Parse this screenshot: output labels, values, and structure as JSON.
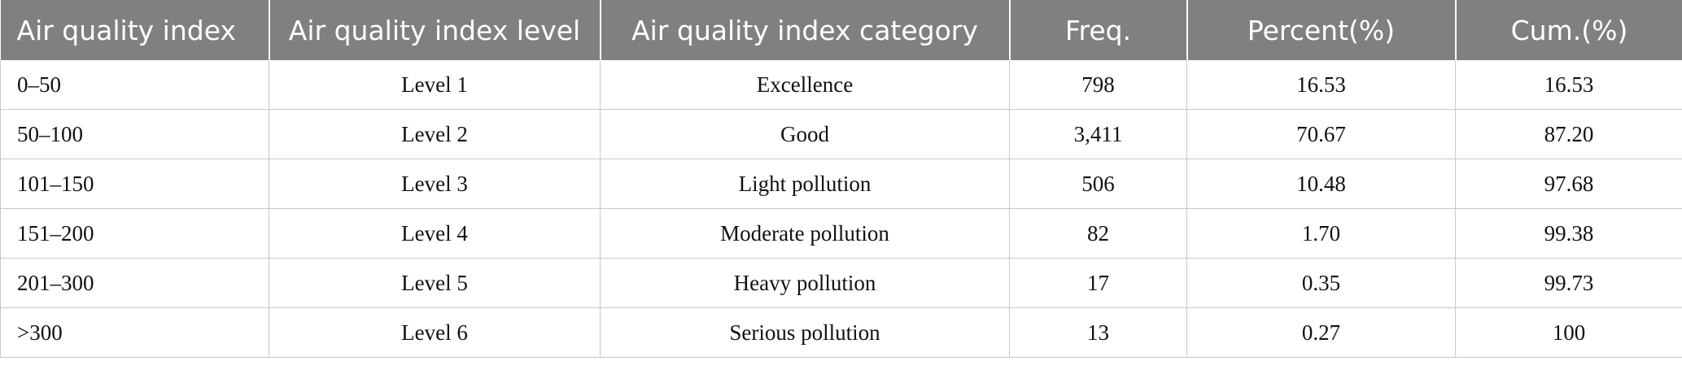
{
  "table": {
    "headers": [
      "Air quality index",
      "Air quality index level",
      "Air quality index category",
      "Freq.",
      "Percent(%)",
      "Cum.(%)"
    ],
    "rows": [
      [
        "0–50",
        "Level 1",
        "Excellence",
        "798",
        "16.53",
        "16.53"
      ],
      [
        "50–100",
        "Level 2",
        "Good",
        "3,411",
        "70.67",
        "87.20"
      ],
      [
        "101–150",
        "Level 3",
        "Light pollution",
        "506",
        "10.48",
        "97.68"
      ],
      [
        "151–200",
        "Level 4",
        "Moderate pollution",
        "82",
        "1.70",
        "99.38"
      ],
      [
        "201–300",
        "Level 5",
        "Heavy pollution",
        "17",
        "0.35",
        "99.73"
      ],
      [
        ">300",
        "Level 6",
        "Serious pollution",
        "13",
        "0.27",
        "100"
      ]
    ]
  },
  "colors": {
    "header_bg": "#808080",
    "header_text": "#ffffff",
    "grid": "#c8c8c8",
    "body_text": "#111111"
  }
}
